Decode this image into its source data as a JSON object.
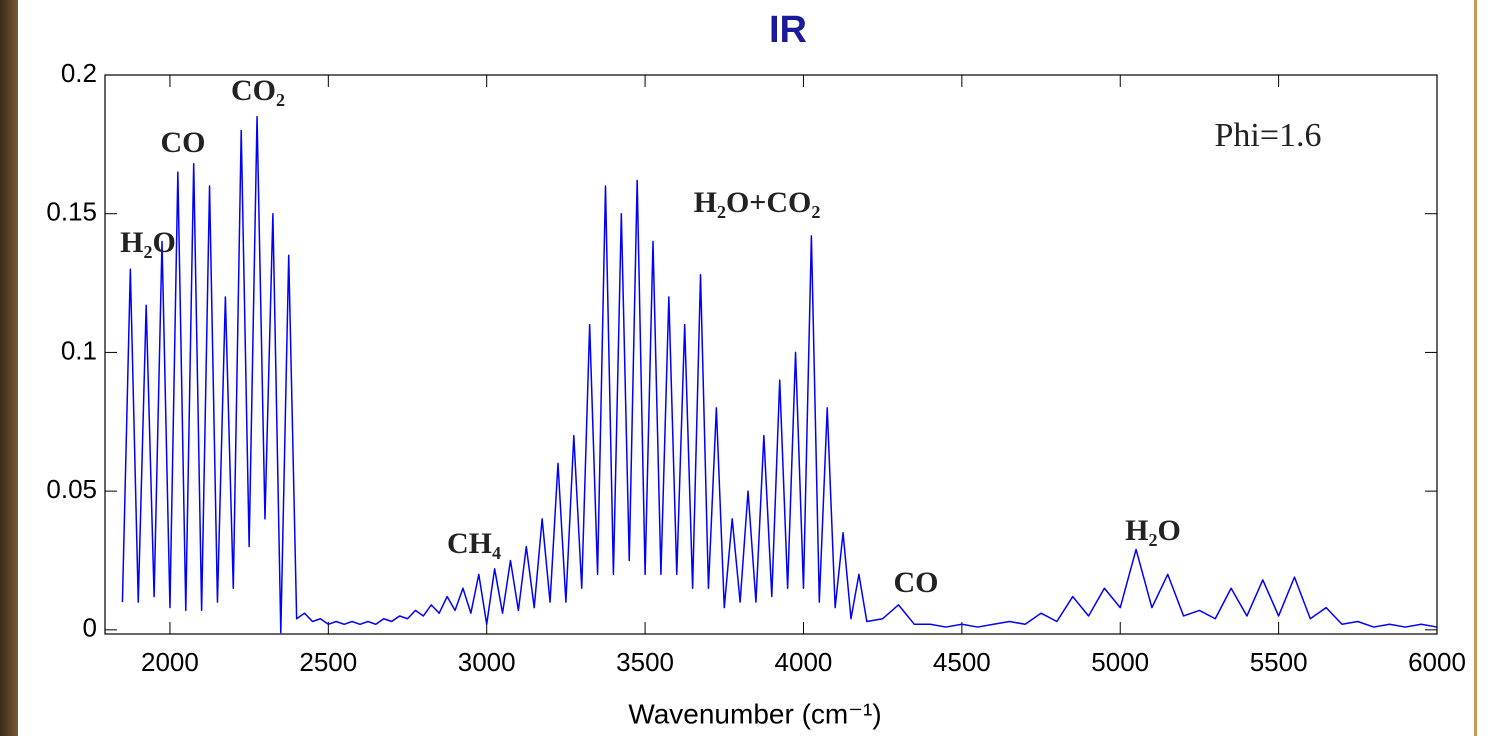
{
  "chart_data": {
    "type": "line",
    "title": "IR",
    "xlabel": "Wavenumber (cm⁻¹)",
    "annotations": [
      "H₂O",
      "CO",
      "CO₂",
      "Phi=1.6",
      "H₂O+CO₂",
      "CH₄",
      "CO",
      "H₂O"
    ],
    "color": "#0000ff",
    "xlim": [
      1795,
      6000
    ],
    "ylim": [
      -0.0015,
      0.2
    ],
    "xticks": [
      2000,
      2500,
      3000,
      3500,
      4000,
      4500,
      5000,
      5500,
      6000
    ],
    "yticks": [
      0,
      0.05,
      0.1,
      0.15,
      0.2
    ],
    "grid": false,
    "x": [
      1850,
      1875,
      1900,
      1925,
      1950,
      1975,
      2000,
      2025,
      2050,
      2075,
      2100,
      2125,
      2150,
      2175,
      2200,
      2225,
      2250,
      2275,
      2300,
      2325,
      2350,
      2375,
      2400,
      2425,
      2450,
      2475,
      2500,
      2525,
      2550,
      2575,
      2600,
      2625,
      2650,
      2675,
      2700,
      2725,
      2750,
      2775,
      2800,
      2825,
      2850,
      2875,
      2900,
      2925,
      2950,
      2975,
      3000,
      3025,
      3050,
      3075,
      3100,
      3125,
      3150,
      3175,
      3200,
      3225,
      3250,
      3275,
      3300,
      3325,
      3350,
      3375,
      3400,
      3425,
      3450,
      3475,
      3500,
      3525,
      3550,
      3575,
      3600,
      3625,
      3650,
      3675,
      3700,
      3725,
      3750,
      3775,
      3800,
      3825,
      3850,
      3875,
      3900,
      3925,
      3950,
      3975,
      4000,
      4025,
      4050,
      4075,
      4100,
      4125,
      4150,
      4175,
      4200,
      4250,
      4300,
      4350,
      4400,
      4450,
      4500,
      4550,
      4600,
      4650,
      4700,
      4750,
      4800,
      4850,
      4900,
      4950,
      5000,
      5050,
      5100,
      5150,
      5200,
      5250,
      5300,
      5350,
      5400,
      5450,
      5500,
      5550,
      5600,
      5650,
      5700,
      5750,
      5800,
      5850,
      5900,
      5950,
      6000
    ],
    "values": [
      0.01,
      0.13,
      0.01,
      0.117,
      0.012,
      0.14,
      0.008,
      0.165,
      0.007,
      0.168,
      0.007,
      0.16,
      0.01,
      0.12,
      0.015,
      0.18,
      0.03,
      0.185,
      0.04,
      0.15,
      -0.001,
      0.135,
      0.004,
      0.006,
      0.003,
      0.004,
      0.002,
      0.003,
      0.002,
      0.003,
      0.002,
      0.003,
      0.002,
      0.004,
      0.003,
      0.005,
      0.004,
      0.007,
      0.005,
      0.009,
      0.006,
      0.012,
      0.007,
      0.015,
      0.006,
      0.02,
      0.002,
      0.022,
      0.006,
      0.025,
      0.007,
      0.03,
      0.008,
      0.04,
      0.01,
      0.06,
      0.01,
      0.07,
      0.015,
      0.11,
      0.02,
      0.16,
      0.02,
      0.15,
      0.025,
      0.162,
      0.02,
      0.14,
      0.02,
      0.12,
      0.02,
      0.11,
      0.015,
      0.128,
      0.015,
      0.08,
      0.008,
      0.04,
      0.01,
      0.05,
      0.01,
      0.07,
      0.012,
      0.09,
      0.015,
      0.1,
      0.015,
      0.142,
      0.01,
      0.08,
      0.008,
      0.035,
      0.004,
      0.02,
      0.003,
      0.004,
      0.009,
      0.002,
      0.002,
      0.001,
      0.002,
      0.001,
      0.002,
      0.003,
      0.002,
      0.006,
      0.003,
      0.012,
      0.005,
      0.015,
      0.008,
      0.029,
      0.008,
      0.02,
      0.005,
      0.007,
      0.004,
      0.015,
      0.005,
      0.018,
      0.005,
      0.019,
      0.004,
      0.008,
      0.002,
      0.003,
      0.001,
      0.002,
      0.001,
      0.002,
      0.001
    ]
  }
}
